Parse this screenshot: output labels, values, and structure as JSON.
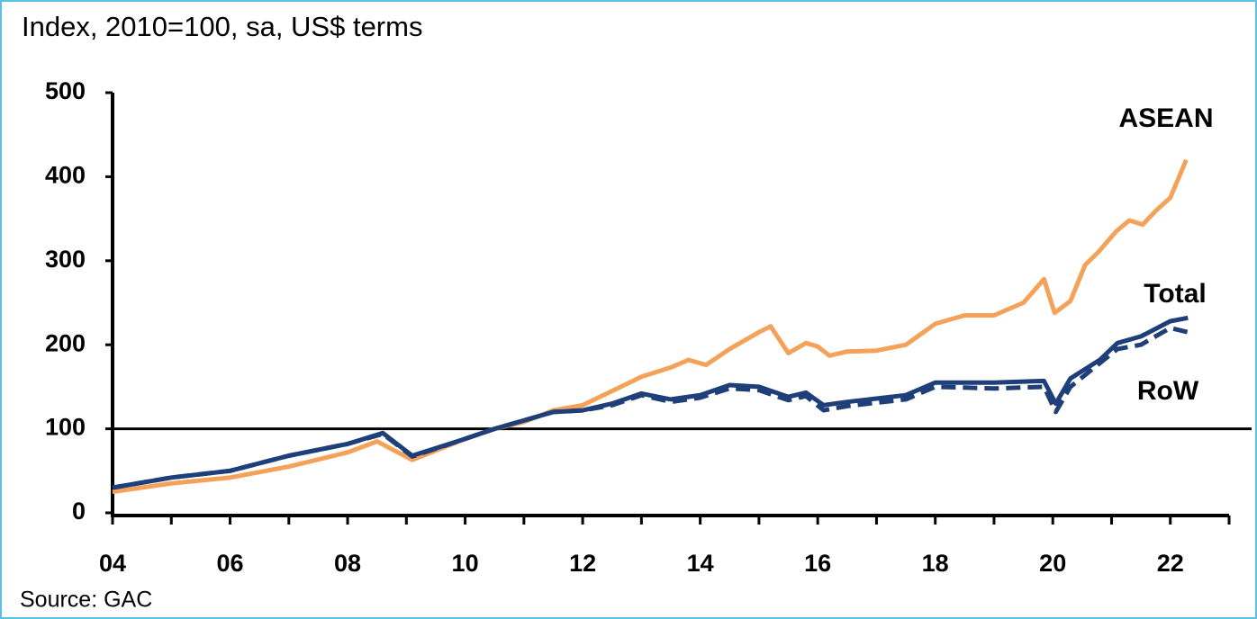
{
  "chart_data": {
    "type": "line",
    "title": "Index, 2010=100, sa, US$ terms",
    "source": "Source: GAC",
    "xlim": [
      2004,
      2023
    ],
    "xticks": [
      {
        "value": 2004,
        "label": "04"
      },
      {
        "value": 2006,
        "label": "06"
      },
      {
        "value": 2008,
        "label": "08"
      },
      {
        "value": 2010,
        "label": "10"
      },
      {
        "value": 2012,
        "label": "12"
      },
      {
        "value": 2014,
        "label": "14"
      },
      {
        "value": 2016,
        "label": "16"
      },
      {
        "value": 2018,
        "label": "18"
      },
      {
        "value": 2020,
        "label": "20"
      },
      {
        "value": 2022,
        "label": "22"
      }
    ],
    "xminorticks": [
      2005,
      2007,
      2009,
      2011,
      2013,
      2015,
      2017,
      2019,
      2021,
      2023
    ],
    "ylim": [
      0,
      500
    ],
    "yticks": [
      0,
      100,
      200,
      300,
      400,
      500
    ],
    "reference_line": 100,
    "series": [
      {
        "name": "ASEAN",
        "color": "#f4a259",
        "dash": false,
        "x": [
          2004,
          2005,
          2006,
          2007,
          2008,
          2008.5,
          2009.1,
          2010,
          2010.5,
          2011,
          2011.5,
          2012,
          2012.5,
          2013,
          2013.5,
          2013.8,
          2014.1,
          2014.5,
          2015,
          2015.2,
          2015.5,
          2015.8,
          2016,
          2016.2,
          2016.5,
          2017,
          2017.5,
          2018,
          2018.5,
          2019,
          2019.5,
          2019.85,
          2020.03,
          2020.3,
          2020.55,
          2020.77,
          2021.08,
          2021.3,
          2021.53,
          2021.76,
          2022,
          2022.27
        ],
        "values": [
          25,
          35,
          42,
          55,
          72,
          85,
          63,
          88,
          100,
          108,
          122,
          128,
          145,
          162,
          173,
          182,
          176,
          195,
          215,
          222,
          190,
          202,
          198,
          187,
          192,
          193,
          200,
          225,
          235,
          235,
          250,
          278,
          238,
          252,
          295,
          310,
          335,
          348,
          343,
          360,
          375,
          420
        ]
      },
      {
        "name": "Total",
        "color": "#1f3f7a",
        "dash": false,
        "x": [
          2004,
          2005,
          2006,
          2007,
          2008,
          2008.6,
          2009.1,
          2010,
          2010.5,
          2011,
          2011.5,
          2012,
          2012.5,
          2013,
          2013.5,
          2014,
          2014.5,
          2015,
          2015.5,
          2015.8,
          2016.1,
          2016.5,
          2017,
          2017.5,
          2018,
          2018.5,
          2019,
          2019.85,
          2020.05,
          2020.3,
          2020.8,
          2021.1,
          2021.5,
          2022,
          2022.3
        ],
        "values": [
          30,
          42,
          50,
          68,
          82,
          95,
          68,
          88,
          100,
          110,
          120,
          122,
          130,
          142,
          135,
          140,
          152,
          150,
          138,
          143,
          128,
          132,
          136,
          140,
          155,
          155,
          155,
          157,
          130,
          160,
          182,
          202,
          210,
          228,
          232
        ]
      },
      {
        "name": "RoW",
        "color": "#1f3f7a",
        "dash": true,
        "x": [
          2004,
          2005,
          2006,
          2007,
          2008,
          2008.6,
          2009.1,
          2010,
          2010.5,
          2011,
          2011.5,
          2012,
          2012.5,
          2013,
          2013.5,
          2014,
          2014.5,
          2015,
          2015.5,
          2015.8,
          2016.1,
          2016.5,
          2017,
          2017.5,
          2018,
          2018.5,
          2019,
          2019.85,
          2020.05,
          2020.3,
          2020.8,
          2021.1,
          2021.5,
          2022,
          2022.3
        ],
        "values": [
          30,
          42,
          50,
          68,
          82,
          94,
          67,
          88,
          100,
          110,
          120,
          122,
          128,
          140,
          132,
          137,
          148,
          146,
          134,
          139,
          122,
          127,
          131,
          135,
          150,
          149,
          148,
          150,
          120,
          150,
          178,
          195,
          200,
          220,
          215
        ]
      }
    ]
  }
}
